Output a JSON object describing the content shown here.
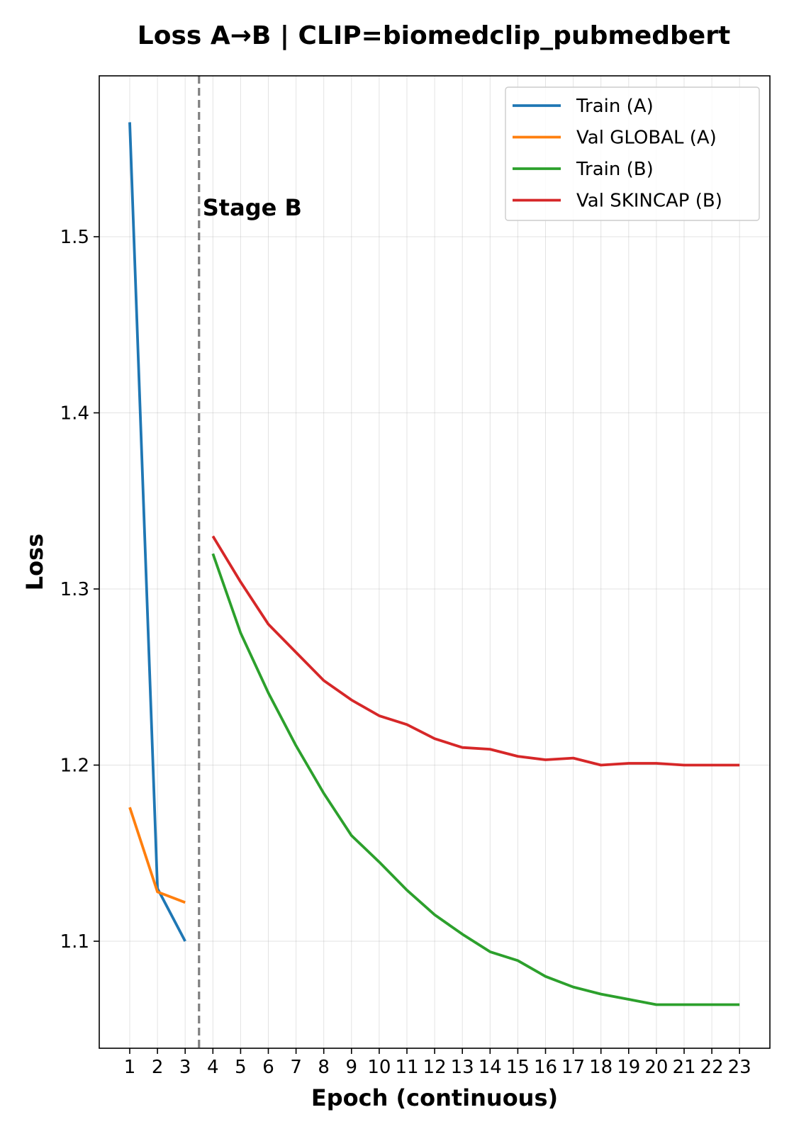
{
  "chart_data": {
    "type": "line",
    "title": "Loss A→B | CLIP=biomedclip_pubmedbert",
    "xlabel": "Epoch (continuous)",
    "ylabel": "Loss",
    "xlim": [
      0,
      24
    ],
    "ylim": [
      1.06,
      1.6
    ],
    "xticks": [
      1,
      2,
      3,
      4,
      5,
      6,
      7,
      8,
      9,
      10,
      11,
      12,
      13,
      14,
      15,
      16,
      17,
      18,
      19,
      20,
      21,
      22,
      23
    ],
    "yticks": [
      1.1,
      1.2,
      1.3,
      1.4,
      1.5
    ],
    "grid": true,
    "legend_position": "top-right",
    "stage_divider": {
      "x": 3.5,
      "label": "Stage B"
    },
    "series": [
      {
        "name": "Train (A)",
        "color": "#1f77b4",
        "x": [
          1,
          2,
          3
        ],
        "values": [
          1.565,
          1.13,
          1.1
        ]
      },
      {
        "name": "Val GLOBAL (A)",
        "color": "#ff7f0e",
        "x": [
          1,
          2,
          3
        ],
        "values": [
          1.176,
          1.128,
          1.122
        ]
      },
      {
        "name": "Train (B)",
        "color": "#2ca02c",
        "x": [
          4,
          5,
          6,
          7,
          8,
          9,
          10,
          11,
          12,
          13,
          14,
          15,
          16,
          17,
          18,
          19,
          20,
          21,
          22,
          23
        ],
        "values": [
          1.32,
          1.275,
          1.241,
          1.211,
          1.184,
          1.16,
          1.145,
          1.129,
          1.115,
          1.104,
          1.094,
          1.089,
          1.08,
          1.074,
          1.07,
          1.067,
          1.064,
          1.064,
          1.064,
          1.064
        ]
      },
      {
        "name": "Val SKINCAP (B)",
        "color": "#d62728",
        "x": [
          4,
          5,
          6,
          7,
          8,
          9,
          10,
          11,
          12,
          13,
          14,
          15,
          16,
          17,
          18,
          19,
          20,
          21,
          22,
          23
        ],
        "values": [
          1.33,
          1.304,
          1.28,
          1.264,
          1.248,
          1.237,
          1.228,
          1.223,
          1.215,
          1.21,
          1.209,
          1.205,
          1.203,
          1.204,
          1.2,
          1.201,
          1.201,
          1.2,
          1.2,
          1.2
        ]
      }
    ]
  }
}
